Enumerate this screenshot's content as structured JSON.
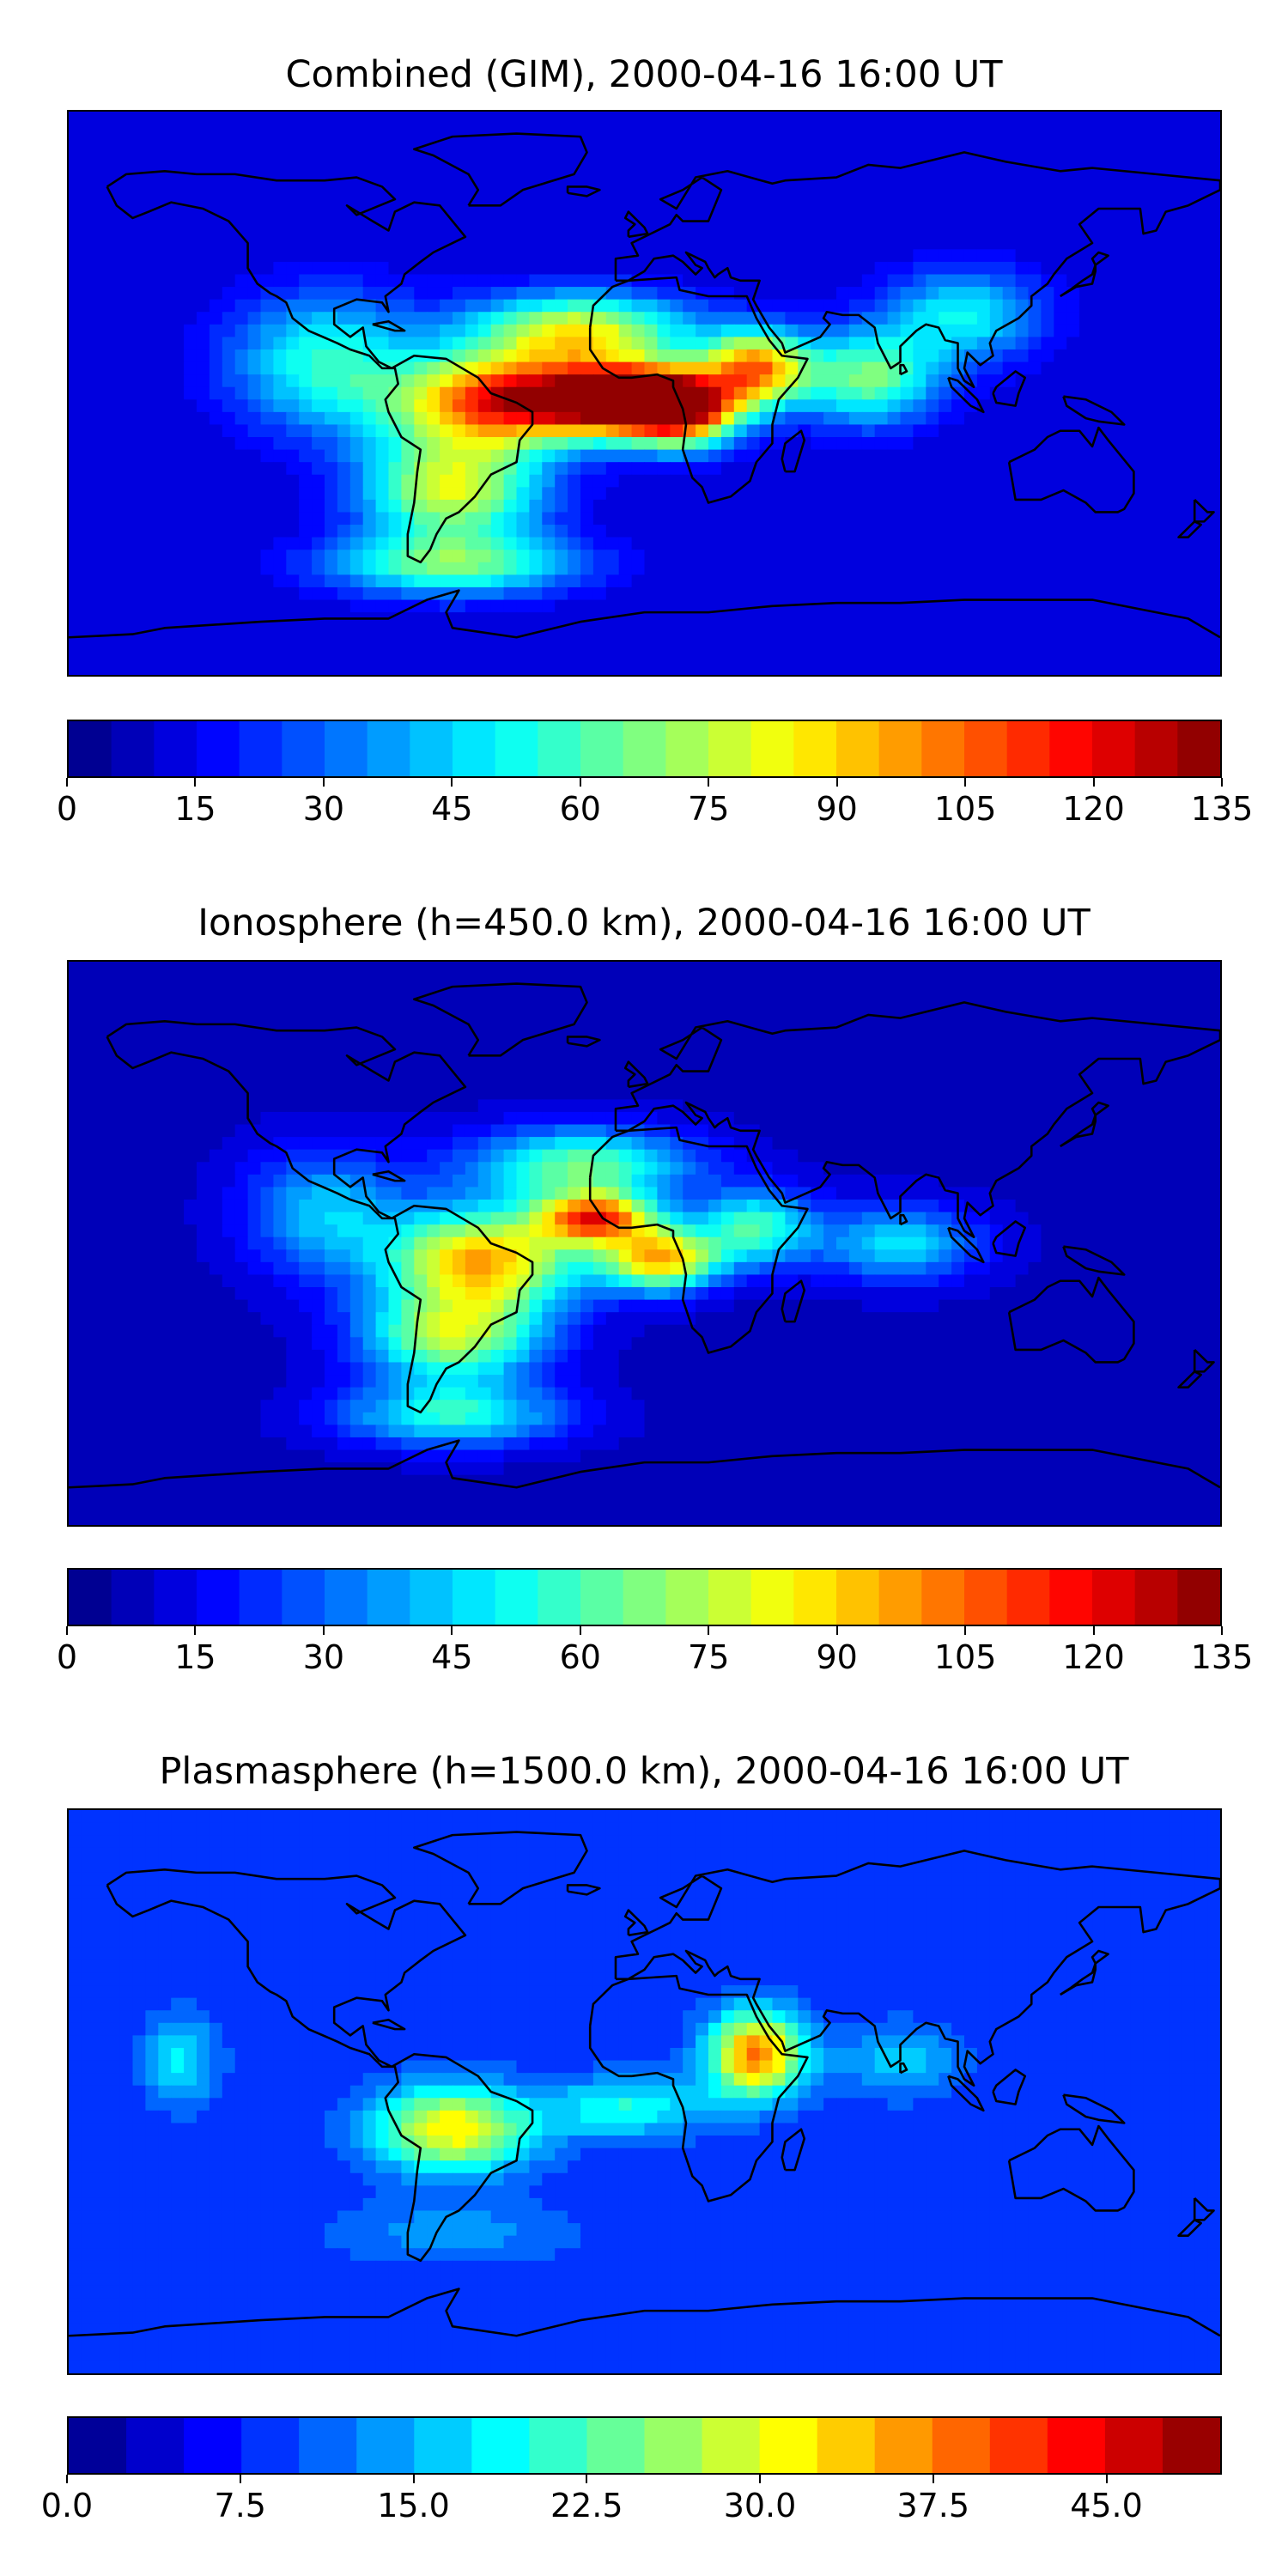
{
  "panels": [
    {
      "title": "Combined (GIM), 2000-04-16 16:00 UT",
      "colorbar": {
        "min": 0,
        "max": 135,
        "levels": 27,
        "ticks": [
          "0",
          "15",
          "30",
          "45",
          "60",
          "75",
          "90",
          "105",
          "120",
          "135"
        ]
      },
      "field": {
        "background": 10,
        "blobs": [
          {
            "lon": -40,
            "lat": -2,
            "value": 110,
            "slon": 35,
            "slat": 14
          },
          {
            "lon": -5,
            "lat": -2,
            "value": 115,
            "slon": 22,
            "slat": 10
          },
          {
            "lon": 12,
            "lat": -5,
            "value": 95,
            "slon": 18,
            "slat": 12
          },
          {
            "lon": 35,
            "lat": 8,
            "value": 85,
            "slon": 16,
            "slat": 12
          },
          {
            "lon": -60,
            "lat": -30,
            "value": 70,
            "slon": 28,
            "slat": 18
          },
          {
            "lon": -20,
            "lat": 20,
            "value": 70,
            "slon": 35,
            "slat": 12
          },
          {
            "lon": -100,
            "lat": 10,
            "value": 45,
            "slon": 30,
            "slat": 22
          },
          {
            "lon": 70,
            "lat": 5,
            "value": 55,
            "slon": 22,
            "slat": 15
          },
          {
            "lon": 100,
            "lat": 25,
            "value": 40,
            "slon": 25,
            "slat": 15
          },
          {
            "lon": -60,
            "lat": -55,
            "value": 50,
            "slon": 40,
            "slat": 10
          }
        ]
      }
    },
    {
      "title": "Ionosphere  (h=450.0 km), 2000-04-16 16:00 UT",
      "colorbar": {
        "min": 0,
        "max": 135,
        "levels": 27,
        "ticks": [
          "0",
          "15",
          "30",
          "45",
          "60",
          "75",
          "90",
          "105",
          "120",
          "135"
        ]
      },
      "field": {
        "background": 8,
        "blobs": [
          {
            "lon": -50,
            "lat": -5,
            "value": 85,
            "slon": 30,
            "slat": 16
          },
          {
            "lon": -15,
            "lat": 8,
            "value": 90,
            "slon": 18,
            "slat": 8
          },
          {
            "lon": 5,
            "lat": -5,
            "value": 85,
            "slon": 18,
            "slat": 10
          },
          {
            "lon": -60,
            "lat": -30,
            "value": 65,
            "slon": 28,
            "slat": 15
          },
          {
            "lon": -20,
            "lat": 25,
            "value": 55,
            "slon": 35,
            "slat": 12
          },
          {
            "lon": 35,
            "lat": 5,
            "value": 50,
            "slon": 18,
            "slat": 12
          },
          {
            "lon": 80,
            "lat": 0,
            "value": 40,
            "slon": 25,
            "slat": 12
          },
          {
            "lon": -100,
            "lat": 10,
            "value": 35,
            "slon": 25,
            "slat": 20
          },
          {
            "lon": -60,
            "lat": -55,
            "value": 45,
            "slon": 35,
            "slat": 10
          }
        ]
      }
    },
    {
      "title": "Plasmasphere (h=1500.0 km), 2000-04-16 16:00 UT",
      "colorbar": {
        "min": 0,
        "max": 50,
        "levels": 20,
        "ticks": [
          "0.0",
          "7.5",
          "15.0",
          "22.5",
          "30.0",
          "37.5",
          "45.0"
        ]
      },
      "field": {
        "background": 8,
        "blobs": [
          {
            "lon": -60,
            "lat": -12,
            "value": 24,
            "slon": 25,
            "slat": 14
          },
          {
            "lon": 35,
            "lat": 12,
            "value": 30,
            "slon": 15,
            "slat": 14
          },
          {
            "lon": -5,
            "lat": -5,
            "value": 12,
            "slon": 25,
            "slat": 10
          },
          {
            "lon": -145,
            "lat": 10,
            "value": 10,
            "slon": 12,
            "slat": 15
          },
          {
            "lon": 80,
            "lat": 10,
            "value": 8,
            "slon": 20,
            "slat": 12
          },
          {
            "lon": -60,
            "lat": -45,
            "value": 6,
            "slon": 40,
            "slat": 10
          }
        ]
      }
    }
  ]
}
